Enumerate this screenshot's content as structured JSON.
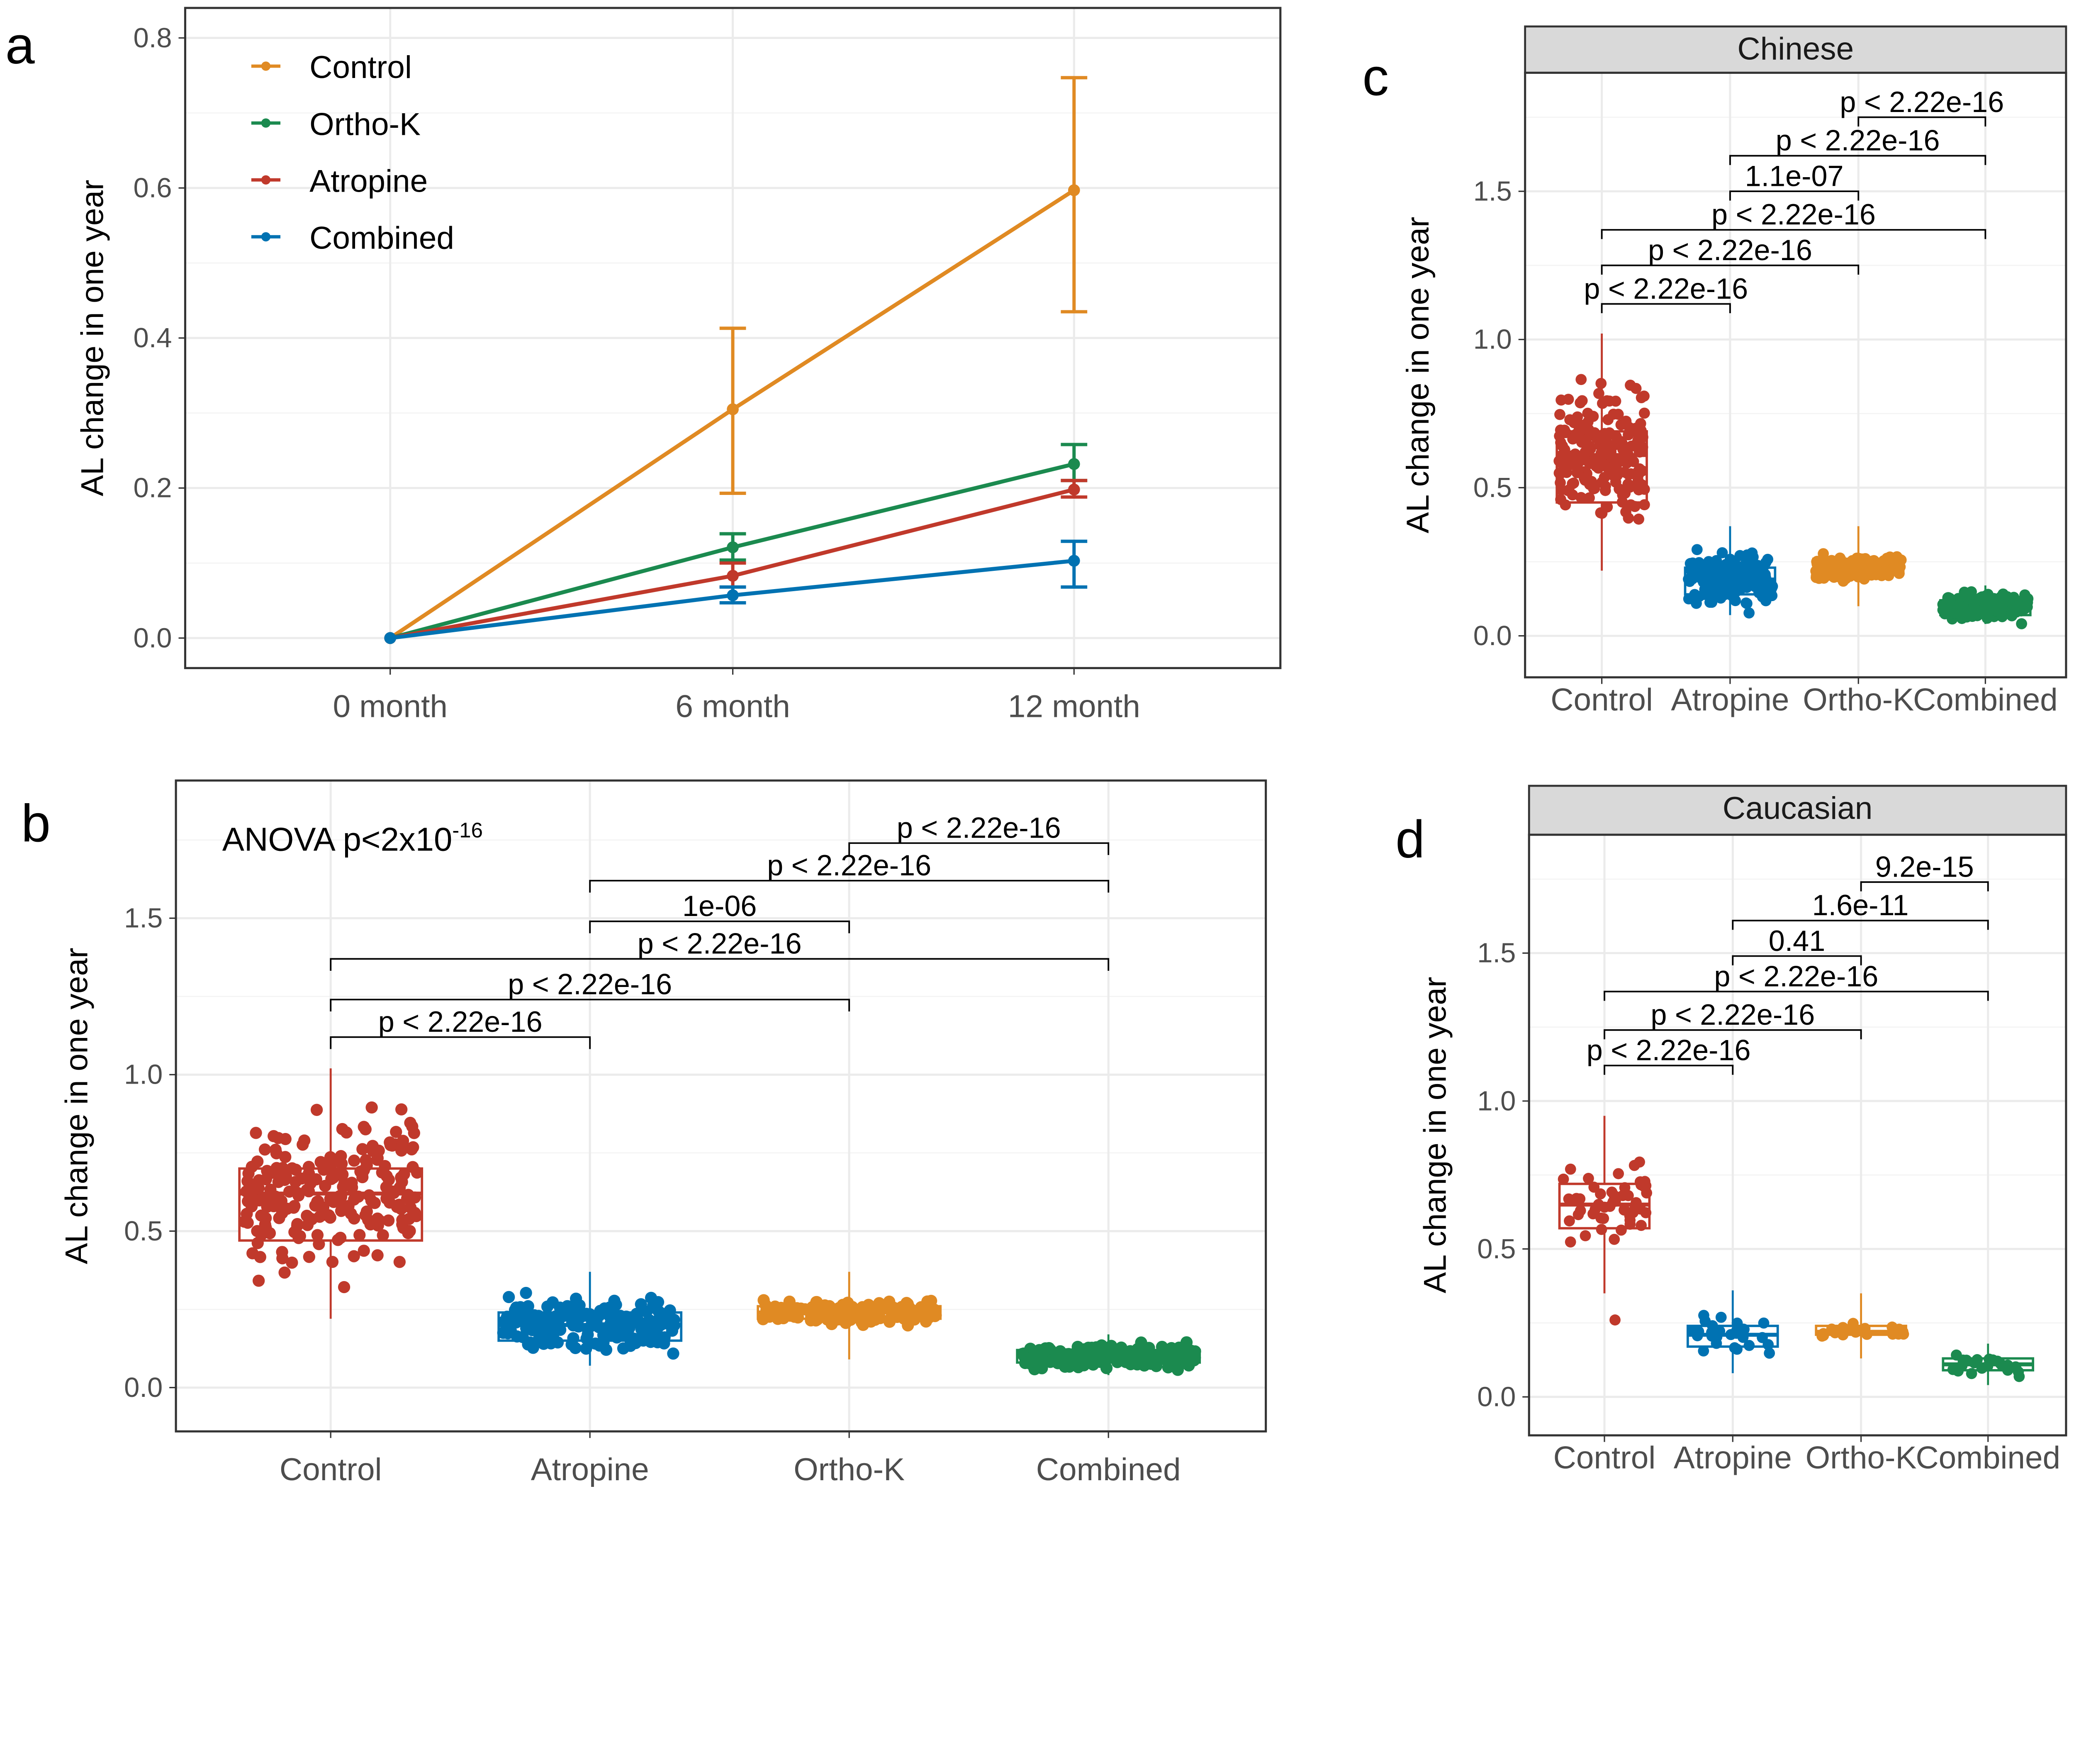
{
  "colors": {
    "Control": "#C0392B",
    "Atropine": "#0072B2",
    "Ortho-K": "#E08A23",
    "Combined": "#1B8A4F",
    "line_control": "#E08A23"
  },
  "chart_data": [
    {
      "panel": "a",
      "type": "line",
      "ylabel": "AL change in one year",
      "categories": [
        "0 month",
        "6 month",
        "12 month"
      ],
      "ylim": [
        -0.04,
        0.84
      ],
      "yticks": [
        0.0,
        0.2,
        0.4,
        0.6,
        0.8
      ],
      "grid": true,
      "legend": "top-left",
      "series": [
        {
          "name": "Control",
          "color": "#E08A23",
          "values": [
            0,
            0.305,
            0.597
          ],
          "err_low": [
            0,
            0.193,
            0.435
          ],
          "err_high": [
            0,
            0.413,
            0.747
          ]
        },
        {
          "name": "Ortho-K",
          "color": "#1B8A4F",
          "values": [
            0,
            0.121,
            0.232
          ],
          "err_low": [
            0,
            0.104,
            0.21
          ],
          "err_high": [
            0,
            0.139,
            0.258
          ]
        },
        {
          "name": "Atropine",
          "color": "#C0392B",
          "values": [
            0,
            0.083,
            0.198
          ],
          "err_low": [
            0,
            0.068,
            0.188
          ],
          "err_high": [
            0,
            0.1,
            0.21
          ]
        },
        {
          "name": "Combined",
          "color": "#0072B2",
          "values": [
            0,
            0.057,
            0.103
          ],
          "err_low": [
            0,
            0.047,
            0.068
          ],
          "err_high": [
            0,
            0.068,
            0.129
          ]
        }
      ]
    },
    {
      "panel": "b",
      "type": "box",
      "ylabel": "AL change in one year",
      "annotation": "ANOVA p<2x10",
      "annotation_sup": "-16",
      "categories": [
        "Control",
        "Atropine",
        "Ortho-K",
        "Combined"
      ],
      "ylim": [
        -0.14,
        1.94
      ],
      "yticks": [
        0.0,
        0.5,
        1.0,
        1.5
      ],
      "grid": true,
      "boxes": [
        {
          "min": 0.22,
          "q1": 0.47,
          "median": 0.62,
          "q3": 0.7,
          "max": 1.02,
          "n": 220
        },
        {
          "min": 0.07,
          "q1": 0.15,
          "median": 0.2,
          "q3": 0.24,
          "max": 0.37,
          "n": 200
        },
        {
          "min": 0.09,
          "q1": 0.22,
          "median": 0.24,
          "q3": 0.26,
          "max": 0.37,
          "n": 160
        },
        {
          "min": 0.04,
          "q1": 0.08,
          "median": 0.1,
          "q3": 0.12,
          "max": 0.17,
          "n": 200
        }
      ],
      "brackets": [
        {
          "from": 0,
          "to": 1,
          "y": 1.12,
          "label": "p < 2.22e-16"
        },
        {
          "from": 0,
          "to": 2,
          "y": 1.24,
          "label": "p < 2.22e-16"
        },
        {
          "from": 0,
          "to": 3,
          "y": 1.37,
          "label": "p < 2.22e-16"
        },
        {
          "from": 1,
          "to": 2,
          "y": 1.49,
          "label": "1e-06"
        },
        {
          "from": 1,
          "to": 3,
          "y": 1.62,
          "label": "p < 2.22e-16"
        },
        {
          "from": 2,
          "to": 3,
          "y": 1.74,
          "label": "p < 2.22e-16"
        }
      ]
    },
    {
      "panel": "c",
      "type": "box",
      "strip": "Chinese",
      "ylabel": "AL change in one year",
      "categories": [
        "Control",
        "Atropine",
        "Ortho-K",
        "Combined"
      ],
      "ylim": [
        -0.14,
        1.9
      ],
      "yticks": [
        0.0,
        0.5,
        1.0,
        1.5
      ],
      "grid": true,
      "boxes": [
        {
          "min": 0.22,
          "q1": 0.45,
          "median": 0.61,
          "q3": 0.69,
          "max": 1.02,
          "n": 190
        },
        {
          "min": 0.07,
          "q1": 0.14,
          "median": 0.19,
          "q3": 0.23,
          "max": 0.37,
          "n": 180
        },
        {
          "min": 0.1,
          "q1": 0.21,
          "median": 0.23,
          "q3": 0.26,
          "max": 0.37,
          "n": 140
        },
        {
          "min": 0.04,
          "q1": 0.07,
          "median": 0.1,
          "q3": 0.12,
          "max": 0.17,
          "n": 180
        }
      ],
      "brackets": [
        {
          "from": 0,
          "to": 1,
          "y": 1.12,
          "label": "p < 2.22e-16"
        },
        {
          "from": 0,
          "to": 2,
          "y": 1.25,
          "label": "p < 2.22e-16"
        },
        {
          "from": 0,
          "to": 3,
          "y": 1.37,
          "label": "p < 2.22e-16"
        },
        {
          "from": 1,
          "to": 2,
          "y": 1.5,
          "label": "1.1e-07"
        },
        {
          "from": 1,
          "to": 3,
          "y": 1.62,
          "label": "p < 2.22e-16"
        },
        {
          "from": 2,
          "to": 3,
          "y": 1.75,
          "label": "p < 2.22e-16"
        }
      ]
    },
    {
      "panel": "d",
      "type": "box",
      "strip": "Caucasian",
      "ylabel": "AL change in one year",
      "categories": [
        "Control",
        "Atropine",
        "Ortho-K",
        "Combined"
      ],
      "ylim": [
        -0.13,
        1.9
      ],
      "yticks": [
        0.0,
        0.5,
        1.0,
        1.5
      ],
      "grid": true,
      "boxes": [
        {
          "min": 0.35,
          "q1": 0.57,
          "median": 0.65,
          "q3": 0.72,
          "max": 0.95,
          "n": 50,
          "outliers": [
            0.26
          ]
        },
        {
          "min": 0.08,
          "q1": 0.17,
          "median": 0.21,
          "q3": 0.24,
          "max": 0.36,
          "n": 30
        },
        {
          "min": 0.13,
          "q1": 0.21,
          "median": 0.22,
          "q3": 0.24,
          "max": 0.35,
          "n": 22
        },
        {
          "min": 0.04,
          "q1": 0.09,
          "median": 0.11,
          "q3": 0.13,
          "max": 0.18,
          "n": 22
        }
      ],
      "brackets": [
        {
          "from": 0,
          "to": 1,
          "y": 1.12,
          "label": "p < 2.22e-16"
        },
        {
          "from": 0,
          "to": 2,
          "y": 1.24,
          "label": "p < 2.22e-16"
        },
        {
          "from": 0,
          "to": 3,
          "y": 1.37,
          "label": "p < 2.22e-16"
        },
        {
          "from": 1,
          "to": 2,
          "y": 1.49,
          "label": "0.41"
        },
        {
          "from": 1,
          "to": 3,
          "y": 1.61,
          "label": "1.6e-11"
        },
        {
          "from": 2,
          "to": 3,
          "y": 1.74,
          "label": "9.2e-15"
        }
      ]
    }
  ]
}
